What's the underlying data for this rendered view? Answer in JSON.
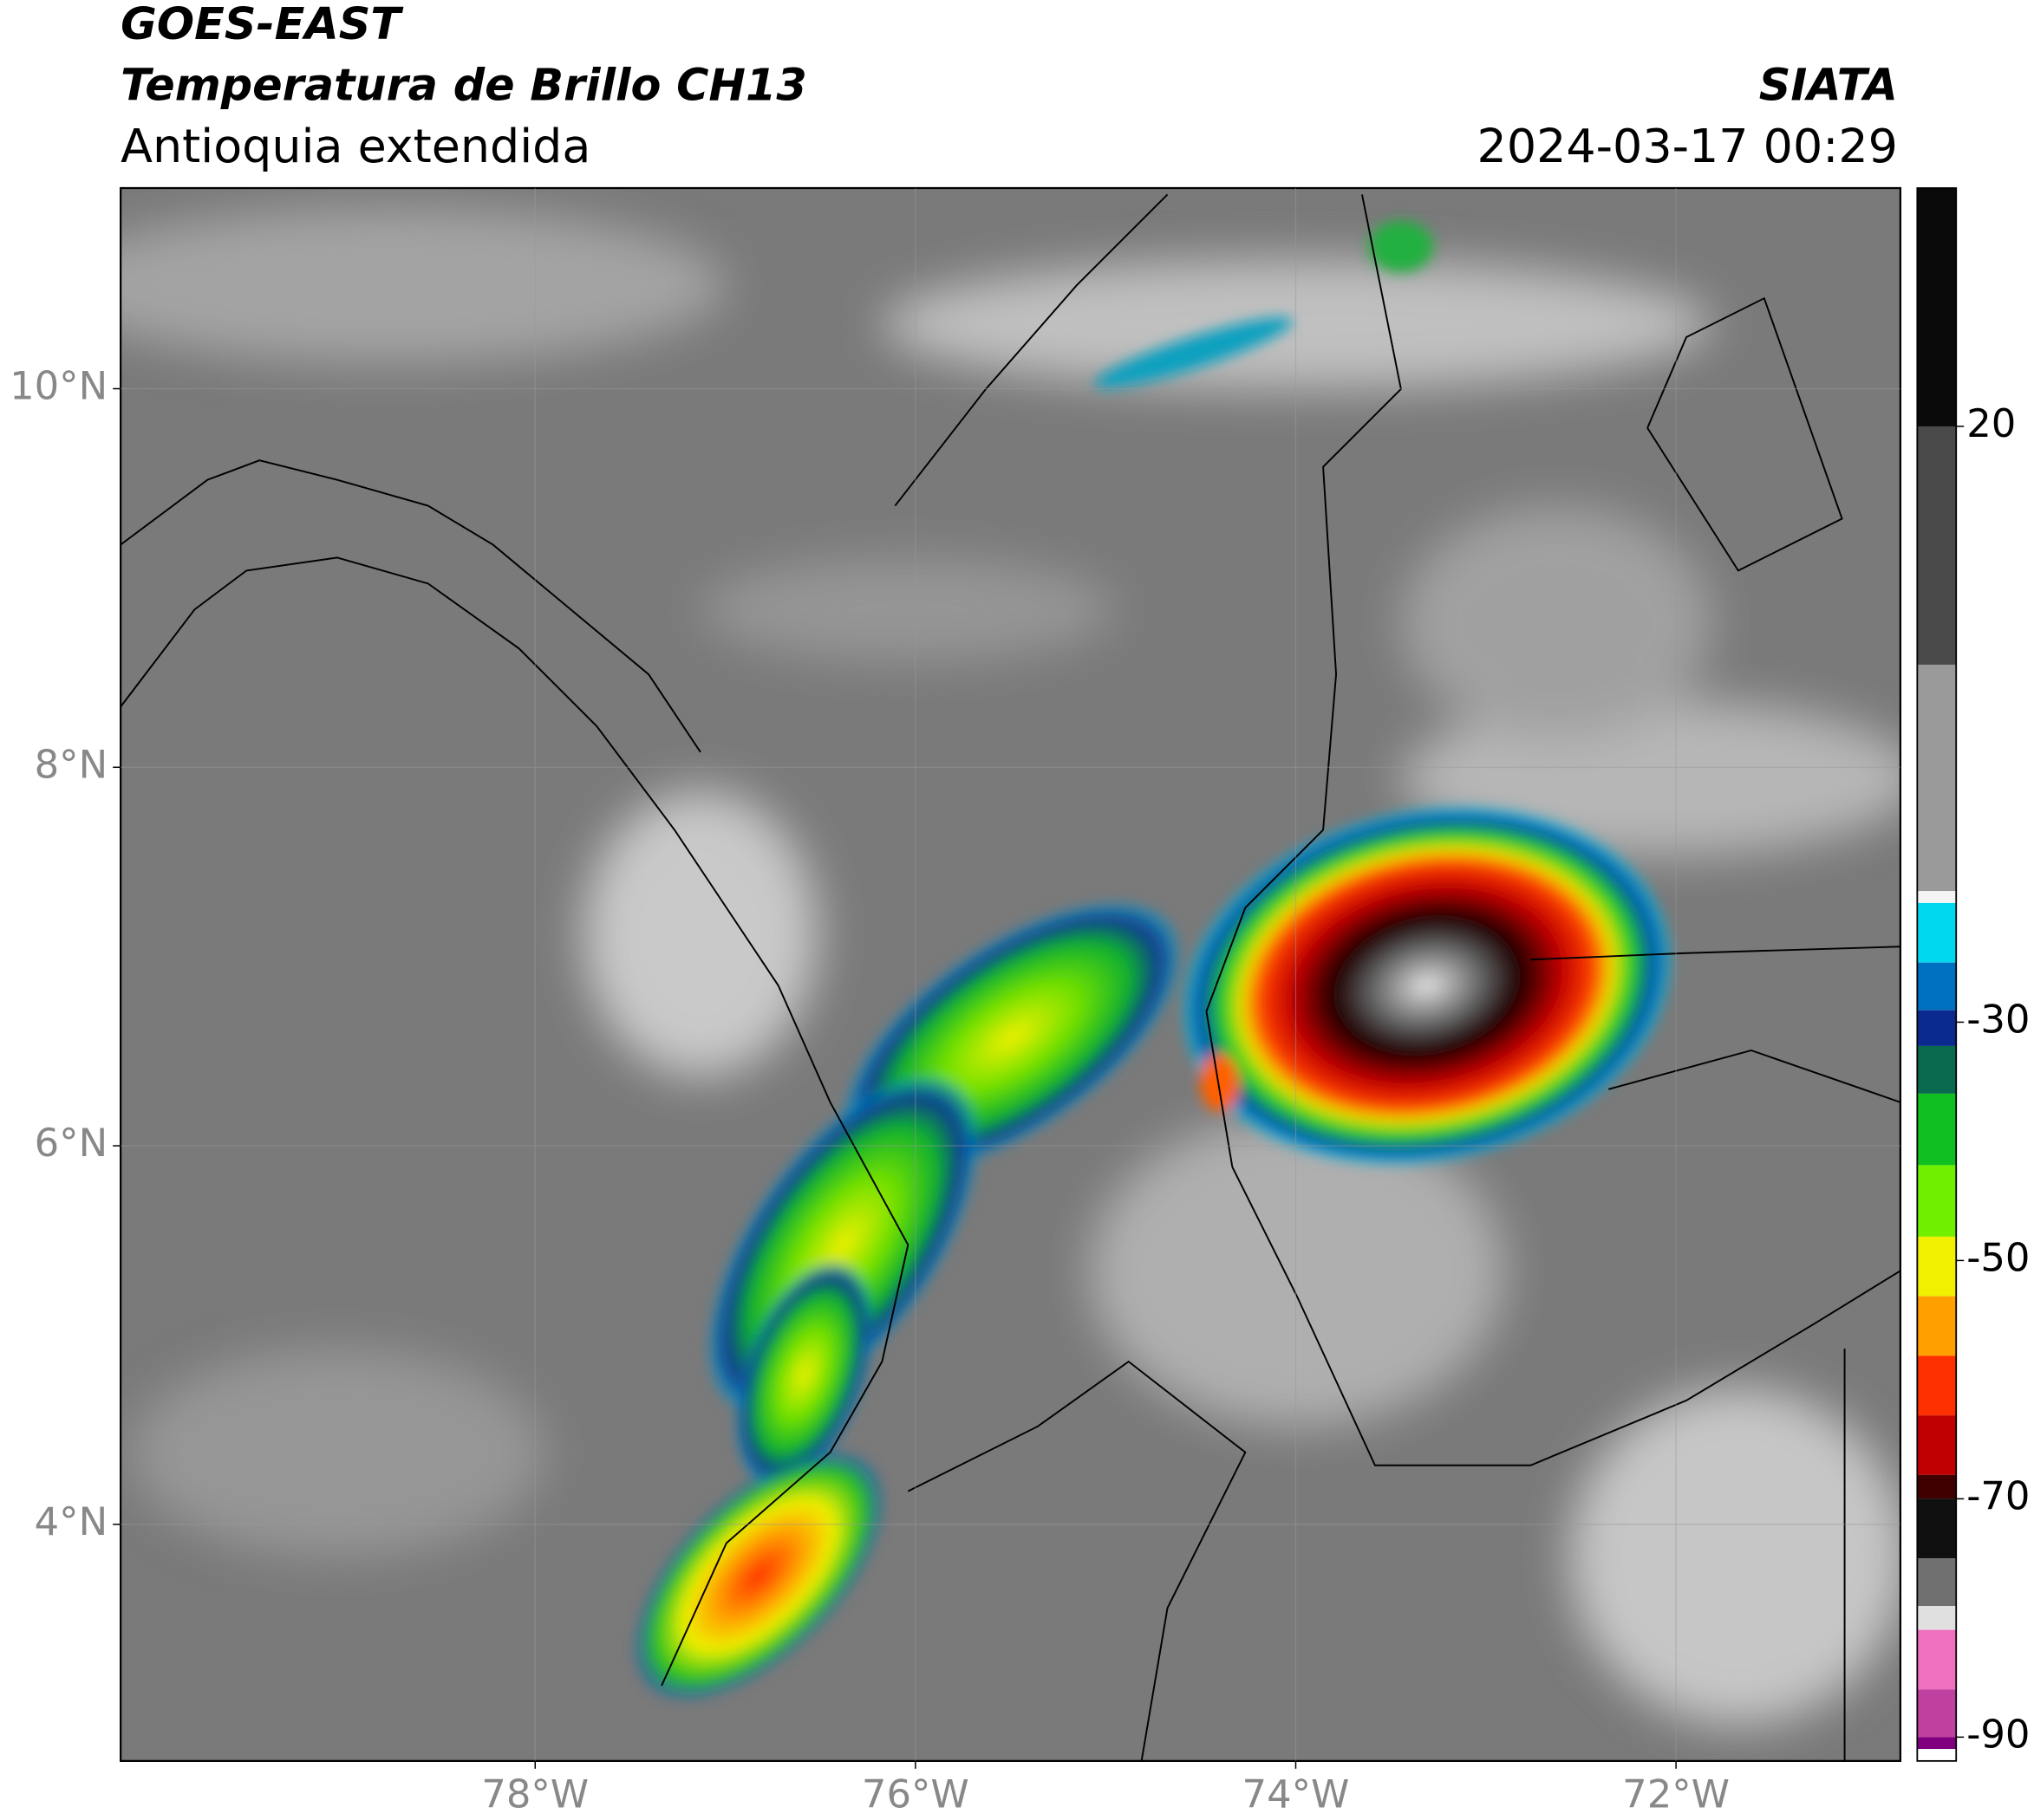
{
  "header": {
    "source": "GOES-EAST",
    "product": "Temperatura de Brillo CH13",
    "region": "Antioquia extendida",
    "agency": "SIATA",
    "datetime": "2024-03-17 00:29"
  },
  "map": {
    "xlim": [
      -80.18,
      -70.82
    ],
    "ylim": [
      2.75,
      11.06
    ],
    "xticks": [
      {
        "value": -78,
        "label": "78°W"
      },
      {
        "value": -76,
        "label": "76°W"
      },
      {
        "value": -74,
        "label": "74°W"
      },
      {
        "value": -72,
        "label": "72°W"
      }
    ],
    "yticks": [
      {
        "value": 10,
        "label": "10°N"
      },
      {
        "value": 8,
        "label": "8°N"
      },
      {
        "value": 6,
        "label": "6°N"
      },
      {
        "value": 4,
        "label": "4°N"
      }
    ],
    "grid": true
  },
  "colorbar": {
    "ylim": [
      -92,
      40
    ],
    "yticks": [
      20,
      -30,
      -50,
      -70,
      -90
    ],
    "colormap": [
      {
        "value": 40,
        "color": "#0a0a0a"
      },
      {
        "value": 20,
        "color": "#4a4a4a"
      },
      {
        "value": 0,
        "color": "#9a9a9a"
      },
      {
        "value": -19,
        "color": "#f4f4f4"
      },
      {
        "value": -20,
        "color": "#00d8f0"
      },
      {
        "value": -25,
        "color": "#0070c0"
      },
      {
        "value": -29,
        "color": "#0a2a90"
      },
      {
        "value": -32,
        "color": "#0a6a50"
      },
      {
        "value": -36,
        "color": "#10c020"
      },
      {
        "value": -42,
        "color": "#70f000"
      },
      {
        "value": -48,
        "color": "#f0f000"
      },
      {
        "value": -53,
        "color": "#ffa000"
      },
      {
        "value": -58,
        "color": "#ff3000"
      },
      {
        "value": -63,
        "color": "#c00000"
      },
      {
        "value": -68,
        "color": "#400000"
      },
      {
        "value": -70,
        "color": "#101010"
      },
      {
        "value": -75,
        "color": "#707070"
      },
      {
        "value": -79,
        "color": "#e0e0e0"
      },
      {
        "value": -81,
        "color": "#f070c0"
      },
      {
        "value": -86,
        "color": "#c040a0"
      },
      {
        "value": -90,
        "color": "#800080"
      },
      {
        "value": -91,
        "color": "#ffffff"
      }
    ]
  }
}
